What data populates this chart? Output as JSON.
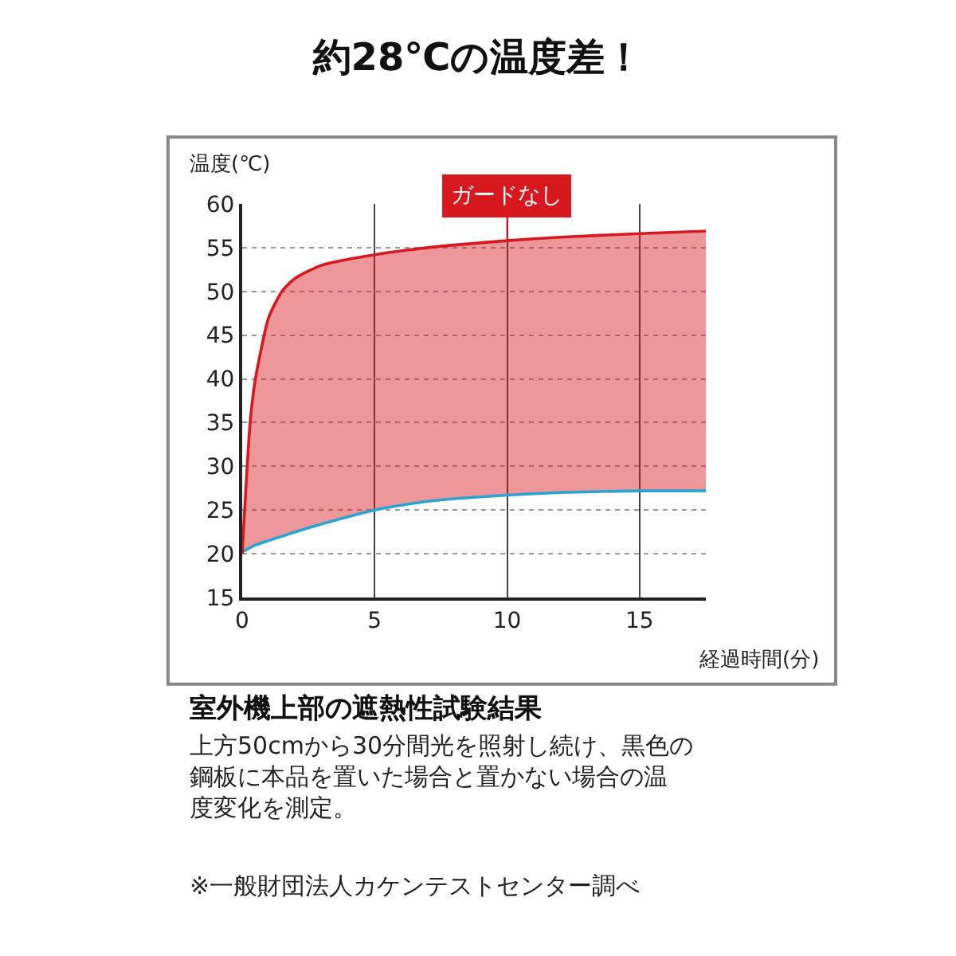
{
  "chart_data": {
    "type": "line",
    "title": "約28℃の温度差！",
    "xlabel": "経過時間(分)",
    "ylabel": "温度(℃)",
    "x": [
      0,
      0.3,
      0.5,
      1,
      1.5,
      2,
      3,
      5,
      7,
      10,
      12,
      15,
      17.5
    ],
    "series": [
      {
        "color": "#2aa3d0",
        "values": [
          20.2,
          20.7,
          21,
          21.5,
          22,
          22.5,
          23.4,
          25,
          26,
          26.7,
          27,
          27.2,
          27.2
        ]
      },
      {
        "type": "area",
        "name": "ガードなし",
        "color": "#d7191f",
        "values": [
          20,
          35,
          40,
          47,
          50,
          51.5,
          53,
          54.2,
          55,
          55.8,
          56.2,
          56.6,
          56.9
        ]
      }
    ],
    "xlim": [
      0,
      17.5
    ],
    "xticks": [
      0,
      5,
      10,
      15
    ],
    "ylim": [
      15,
      60
    ],
    "yticks": [
      15,
      20,
      25,
      30,
      35,
      40,
      45,
      50,
      55,
      60
    ],
    "grid": true,
    "annotations": [
      "室外機上部の遮熱性試験結果",
      "上方50cmから30分間光を照射し続け、黒色の鋼板に本品を置いた場合と置かない場合の温度変化を測定。",
      "※一般財団法人カケンテストセンター調べ"
    ]
  }
}
